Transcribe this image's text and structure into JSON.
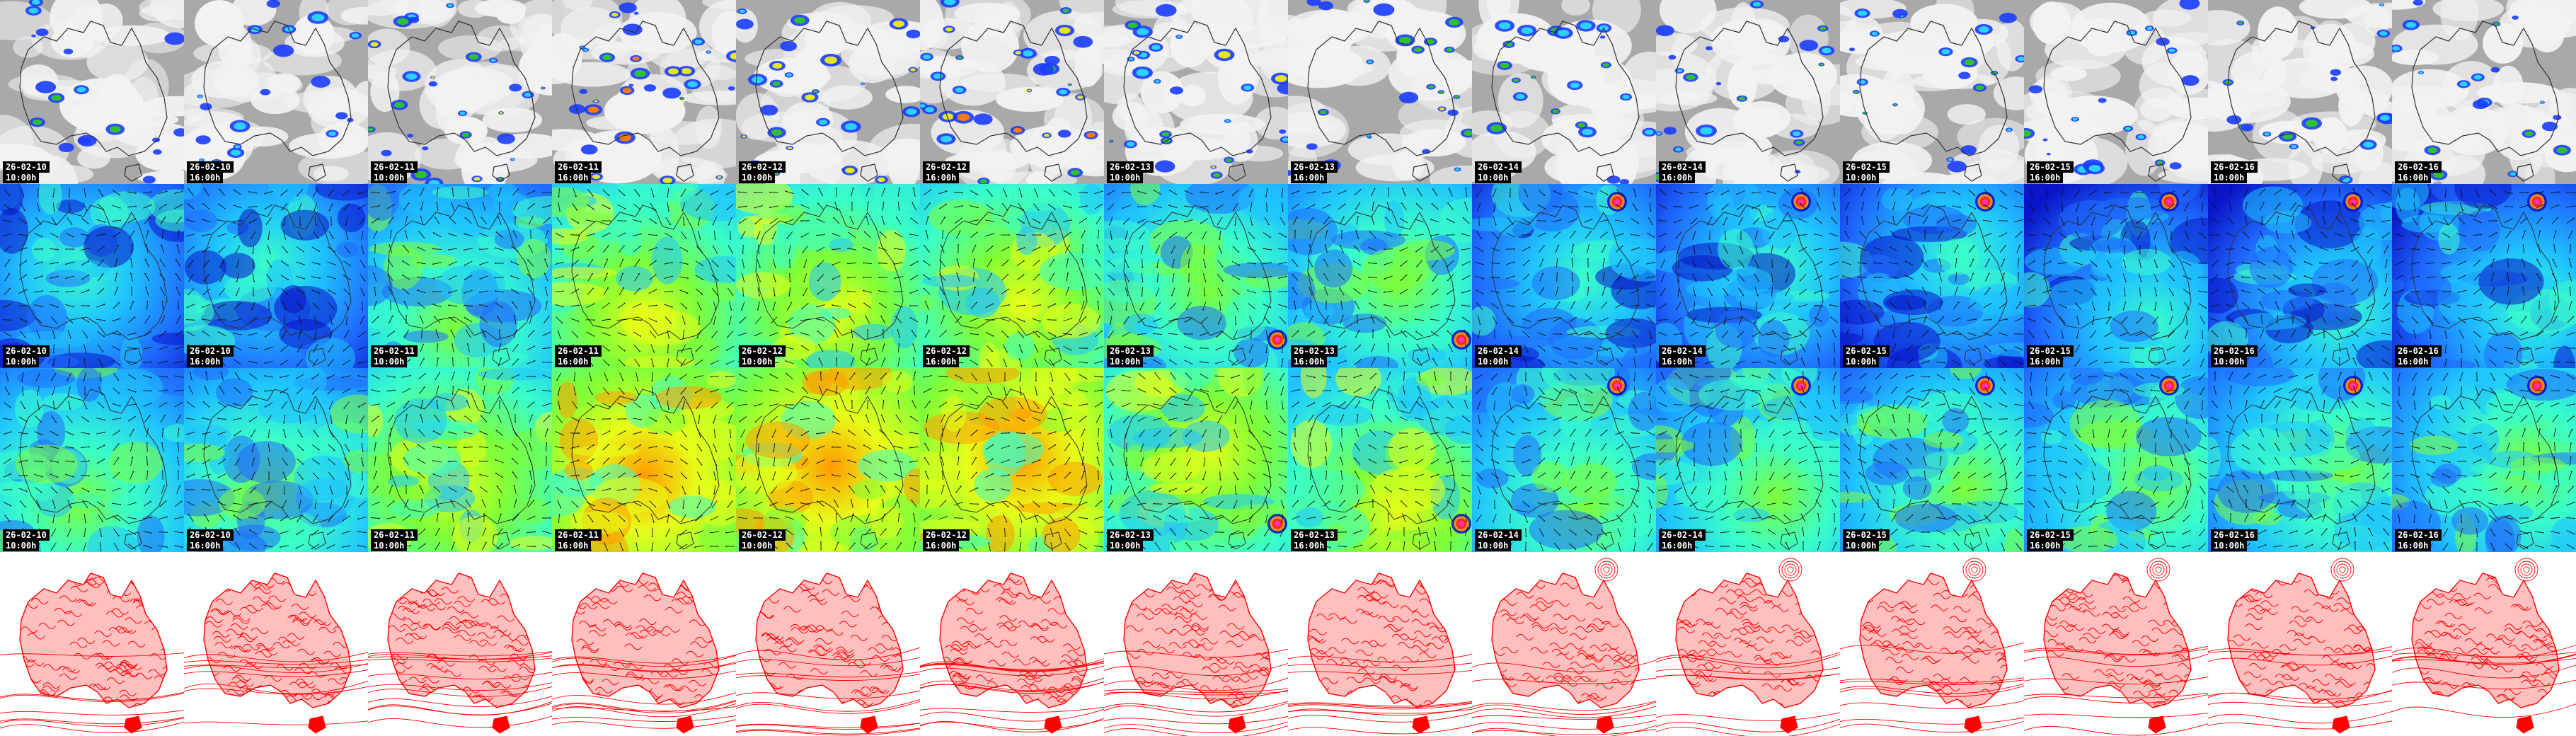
{
  "rows": [
    {
      "name": "cloud",
      "colors": {
        "bg": "#a9a9a9",
        "cloud": "#f2f2f2",
        "precip": [
          "#1a3cff",
          "#2bd1ff",
          "#2fc02f",
          "#e6e619",
          "#ff7a00"
        ],
        "coast": "#303030"
      },
      "show_labels": true
    },
    {
      "name": "wind-low",
      "colors": {
        "ramp": [
          "#0a14c8",
          "#1f6cff",
          "#1fc3ff",
          "#3affc8",
          "#7dff3a",
          "#e6ff19",
          "#ff9a00",
          "#ff1e1e"
        ],
        "arrow": "#111111",
        "coast": "#303030"
      },
      "show_labels": true
    },
    {
      "name": "wind-high",
      "colors": {
        "ramp": [
          "#0a14c8",
          "#1f6cff",
          "#1fc3ff",
          "#3affc8",
          "#7dff3a",
          "#e6ff19",
          "#ff9a00",
          "#ff1e1e"
        ],
        "arrow": "#111111",
        "coast": "#303030"
      },
      "show_labels": true
    },
    {
      "name": "pressure",
      "colors": {
        "bg": "#ffffff",
        "line": "#ff0000"
      },
      "show_labels": false
    }
  ],
  "frames": [
    {
      "date": "26-02-10",
      "time": "10:00h",
      "intensity": 0.25
    },
    {
      "date": "26-02-10",
      "time": "16:00h",
      "intensity": 0.3
    },
    {
      "date": "26-02-11",
      "time": "10:00h",
      "intensity": 0.55
    },
    {
      "date": "26-02-11",
      "time": "16:00h",
      "intensity": 0.65
    },
    {
      "date": "26-02-12",
      "time": "10:00h",
      "intensity": 0.6
    },
    {
      "date": "26-02-12",
      "time": "16:00h",
      "intensity": 0.7
    },
    {
      "date": "26-02-13",
      "time": "10:00h",
      "intensity": 0.55
    },
    {
      "date": "26-02-13",
      "time": "16:00h",
      "intensity": 0.5
    },
    {
      "date": "26-02-14",
      "time": "10:00h",
      "intensity": 0.4
    },
    {
      "date": "26-02-14",
      "time": "16:00h",
      "intensity": 0.35
    },
    {
      "date": "26-02-15",
      "time": "10:00h",
      "intensity": 0.35
    },
    {
      "date": "26-02-15",
      "time": "16:00h",
      "intensity": 0.3
    },
    {
      "date": "26-02-16",
      "time": "10:00h",
      "intensity": 0.3
    },
    {
      "date": "26-02-16",
      "time": "16:00h",
      "intensity": 0.3
    }
  ]
}
